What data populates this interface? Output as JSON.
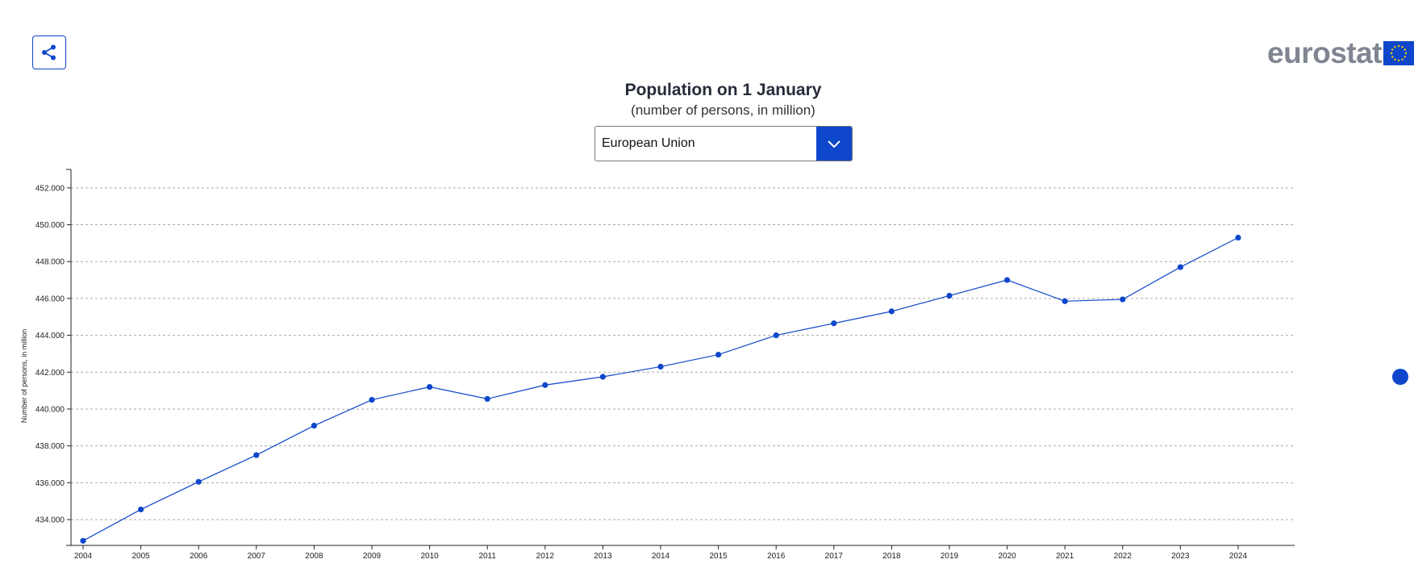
{
  "header": {
    "share_icon": "share-icon",
    "logo_text": "eurostat",
    "logo_flag_icon": "eu-flag-icon"
  },
  "selector": {
    "value": "European Union",
    "arrow_icon": "chevron-down-icon"
  },
  "colors": {
    "accent": "#0e47cb",
    "logo_gray": "#808591",
    "eu_star": "#ffcc00"
  },
  "chart_data": {
    "type": "line",
    "title": "Population on 1 January",
    "subtitle": "(number of persons, in million)",
    "xlabel": "",
    "ylabel": "Number of persons, in million",
    "x": [
      "2004",
      "2005",
      "2006",
      "2007",
      "2008",
      "2009",
      "2010",
      "2011",
      "2012",
      "2013",
      "2014",
      "2015",
      "2016",
      "2017",
      "2018",
      "2019",
      "2020",
      "2021",
      "2022",
      "2023",
      "2024"
    ],
    "series": [
      {
        "values": [
          432.85,
          434.55,
          436.05,
          437.5,
          439.1,
          440.5,
          441.2,
          440.55,
          441.3,
          441.75,
          442.3,
          442.95,
          444.0,
          444.65,
          445.3,
          446.15,
          447.0,
          445.85,
          445.95,
          447.7,
          449.3
        ]
      }
    ],
    "yticks": [
      "434.000",
      "436.000",
      "438.000",
      "440.000",
      "442.000",
      "444.000",
      "446.000",
      "448.000",
      "450.000",
      "452.000"
    ],
    "ylim": [
      432.6,
      453.0
    ],
    "grid": true,
    "legend": "none"
  }
}
